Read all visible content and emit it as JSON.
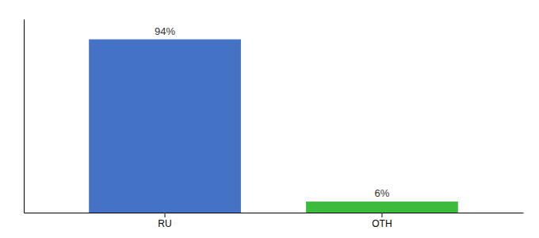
{
  "chart_data": {
    "type": "bar",
    "categories": [
      "RU",
      "OTH"
    ],
    "values": [
      94,
      6
    ],
    "value_labels": [
      "94%",
      "6%"
    ],
    "data_labels": true,
    "colors": [
      "#4472c4",
      "#3dbb3d"
    ],
    "ylim": [
      0,
      105
    ],
    "tick_labels": "x",
    "grid": false
  }
}
